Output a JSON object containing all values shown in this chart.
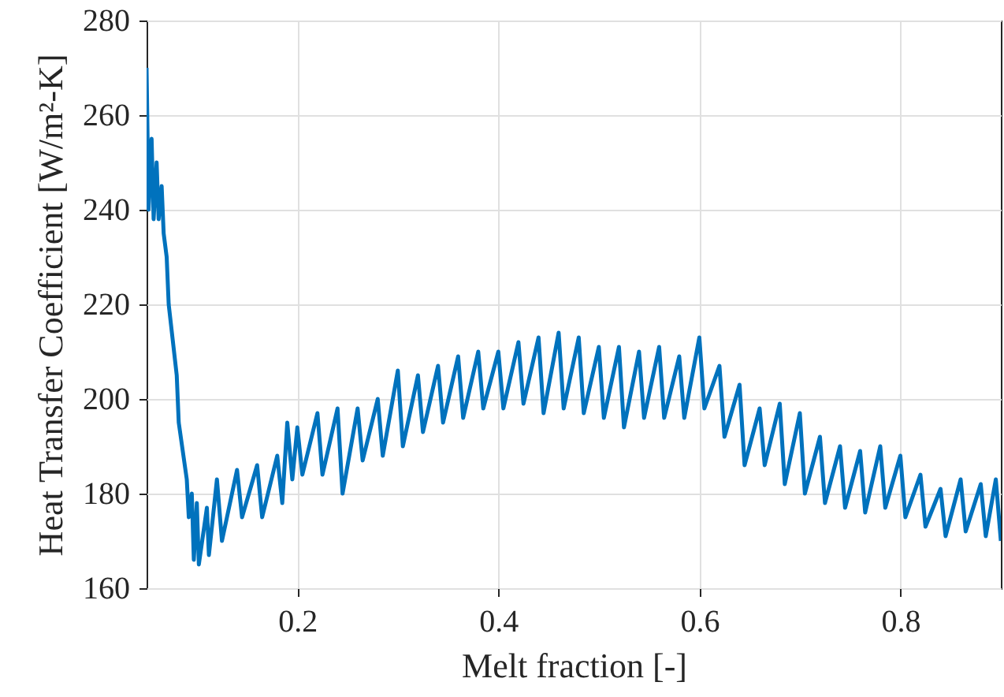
{
  "chart_data": {
    "type": "line",
    "xlabel": "Melt fraction [-]",
    "ylabel": "Heat Transfer Coefficient [W/m²-K]",
    "xlim": [
      0.05,
      0.9
    ],
    "xticks": [
      0.2,
      0.4,
      0.6,
      0.8
    ],
    "ylim": [
      160,
      280
    ],
    "yticks": [
      160,
      180,
      200,
      220,
      240,
      260,
      280
    ],
    "grid": true,
    "line_style": "solid",
    "marker": "none",
    "series": [
      {
        "color": "#0072bd",
        "x": [
          0.05,
          0.052,
          0.055,
          0.057,
          0.06,
          0.062,
          0.065,
          0.067,
          0.07,
          0.072,
          0.08,
          0.082,
          0.09,
          0.092,
          0.095,
          0.097,
          0.1,
          0.102,
          0.11,
          0.112,
          0.12,
          0.125,
          0.14,
          0.145,
          0.16,
          0.165,
          0.18,
          0.185,
          0.19,
          0.195,
          0.2,
          0.205,
          0.22,
          0.225,
          0.24,
          0.245,
          0.26,
          0.265,
          0.28,
          0.285,
          0.3,
          0.305,
          0.32,
          0.325,
          0.34,
          0.345,
          0.36,
          0.365,
          0.38,
          0.385,
          0.4,
          0.405,
          0.42,
          0.425,
          0.44,
          0.445,
          0.46,
          0.465,
          0.48,
          0.485,
          0.5,
          0.505,
          0.52,
          0.525,
          0.54,
          0.545,
          0.56,
          0.565,
          0.58,
          0.585,
          0.6,
          0.605,
          0.62,
          0.625,
          0.64,
          0.645,
          0.66,
          0.665,
          0.68,
          0.685,
          0.7,
          0.705,
          0.72,
          0.725,
          0.74,
          0.745,
          0.76,
          0.765,
          0.78,
          0.785,
          0.8,
          0.805,
          0.82,
          0.825,
          0.84,
          0.845,
          0.86,
          0.865,
          0.88,
          0.885,
          0.895,
          0.9
        ],
        "values": [
          270,
          240,
          255,
          238,
          250,
          238,
          245,
          235,
          230,
          220,
          205,
          195,
          183,
          175,
          180,
          166,
          178,
          165,
          177,
          167,
          183,
          170,
          185,
          175,
          186,
          175,
          188,
          178,
          195,
          183,
          194,
          184,
          197,
          184,
          198,
          180,
          198,
          187,
          200,
          188,
          206,
          190,
          205,
          193,
          207,
          195,
          209,
          196,
          210,
          198,
          210,
          198,
          212,
          199,
          213,
          197,
          214,
          198,
          213,
          197,
          211,
          196,
          211,
          194,
          210,
          196,
          211,
          196,
          209,
          196,
          213,
          198,
          207,
          192,
          203,
          186,
          198,
          186,
          199,
          182,
          197,
          180,
          192,
          178,
          190,
          177,
          189,
          176,
          190,
          177,
          188,
          175,
          184,
          173,
          181,
          171,
          183,
          172,
          182,
          171,
          183,
          170
        ]
      }
    ]
  }
}
